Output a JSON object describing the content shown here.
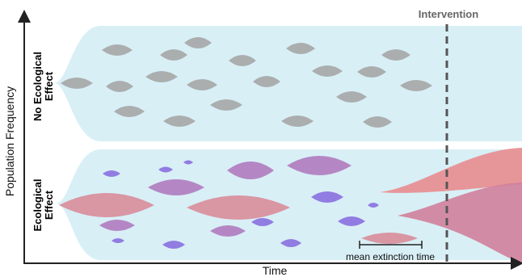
{
  "header": {
    "intervention": "Intervention"
  },
  "axes": {
    "y_label": "Population Frequency",
    "x_label": "Time"
  },
  "panels": [
    {
      "label_lines": [
        "No Ecological",
        "Effect"
      ]
    },
    {
      "label_lines": [
        "Ecological",
        "Effect"
      ]
    }
  ],
  "annotation": {
    "text": "mean extinction time"
  }
}
